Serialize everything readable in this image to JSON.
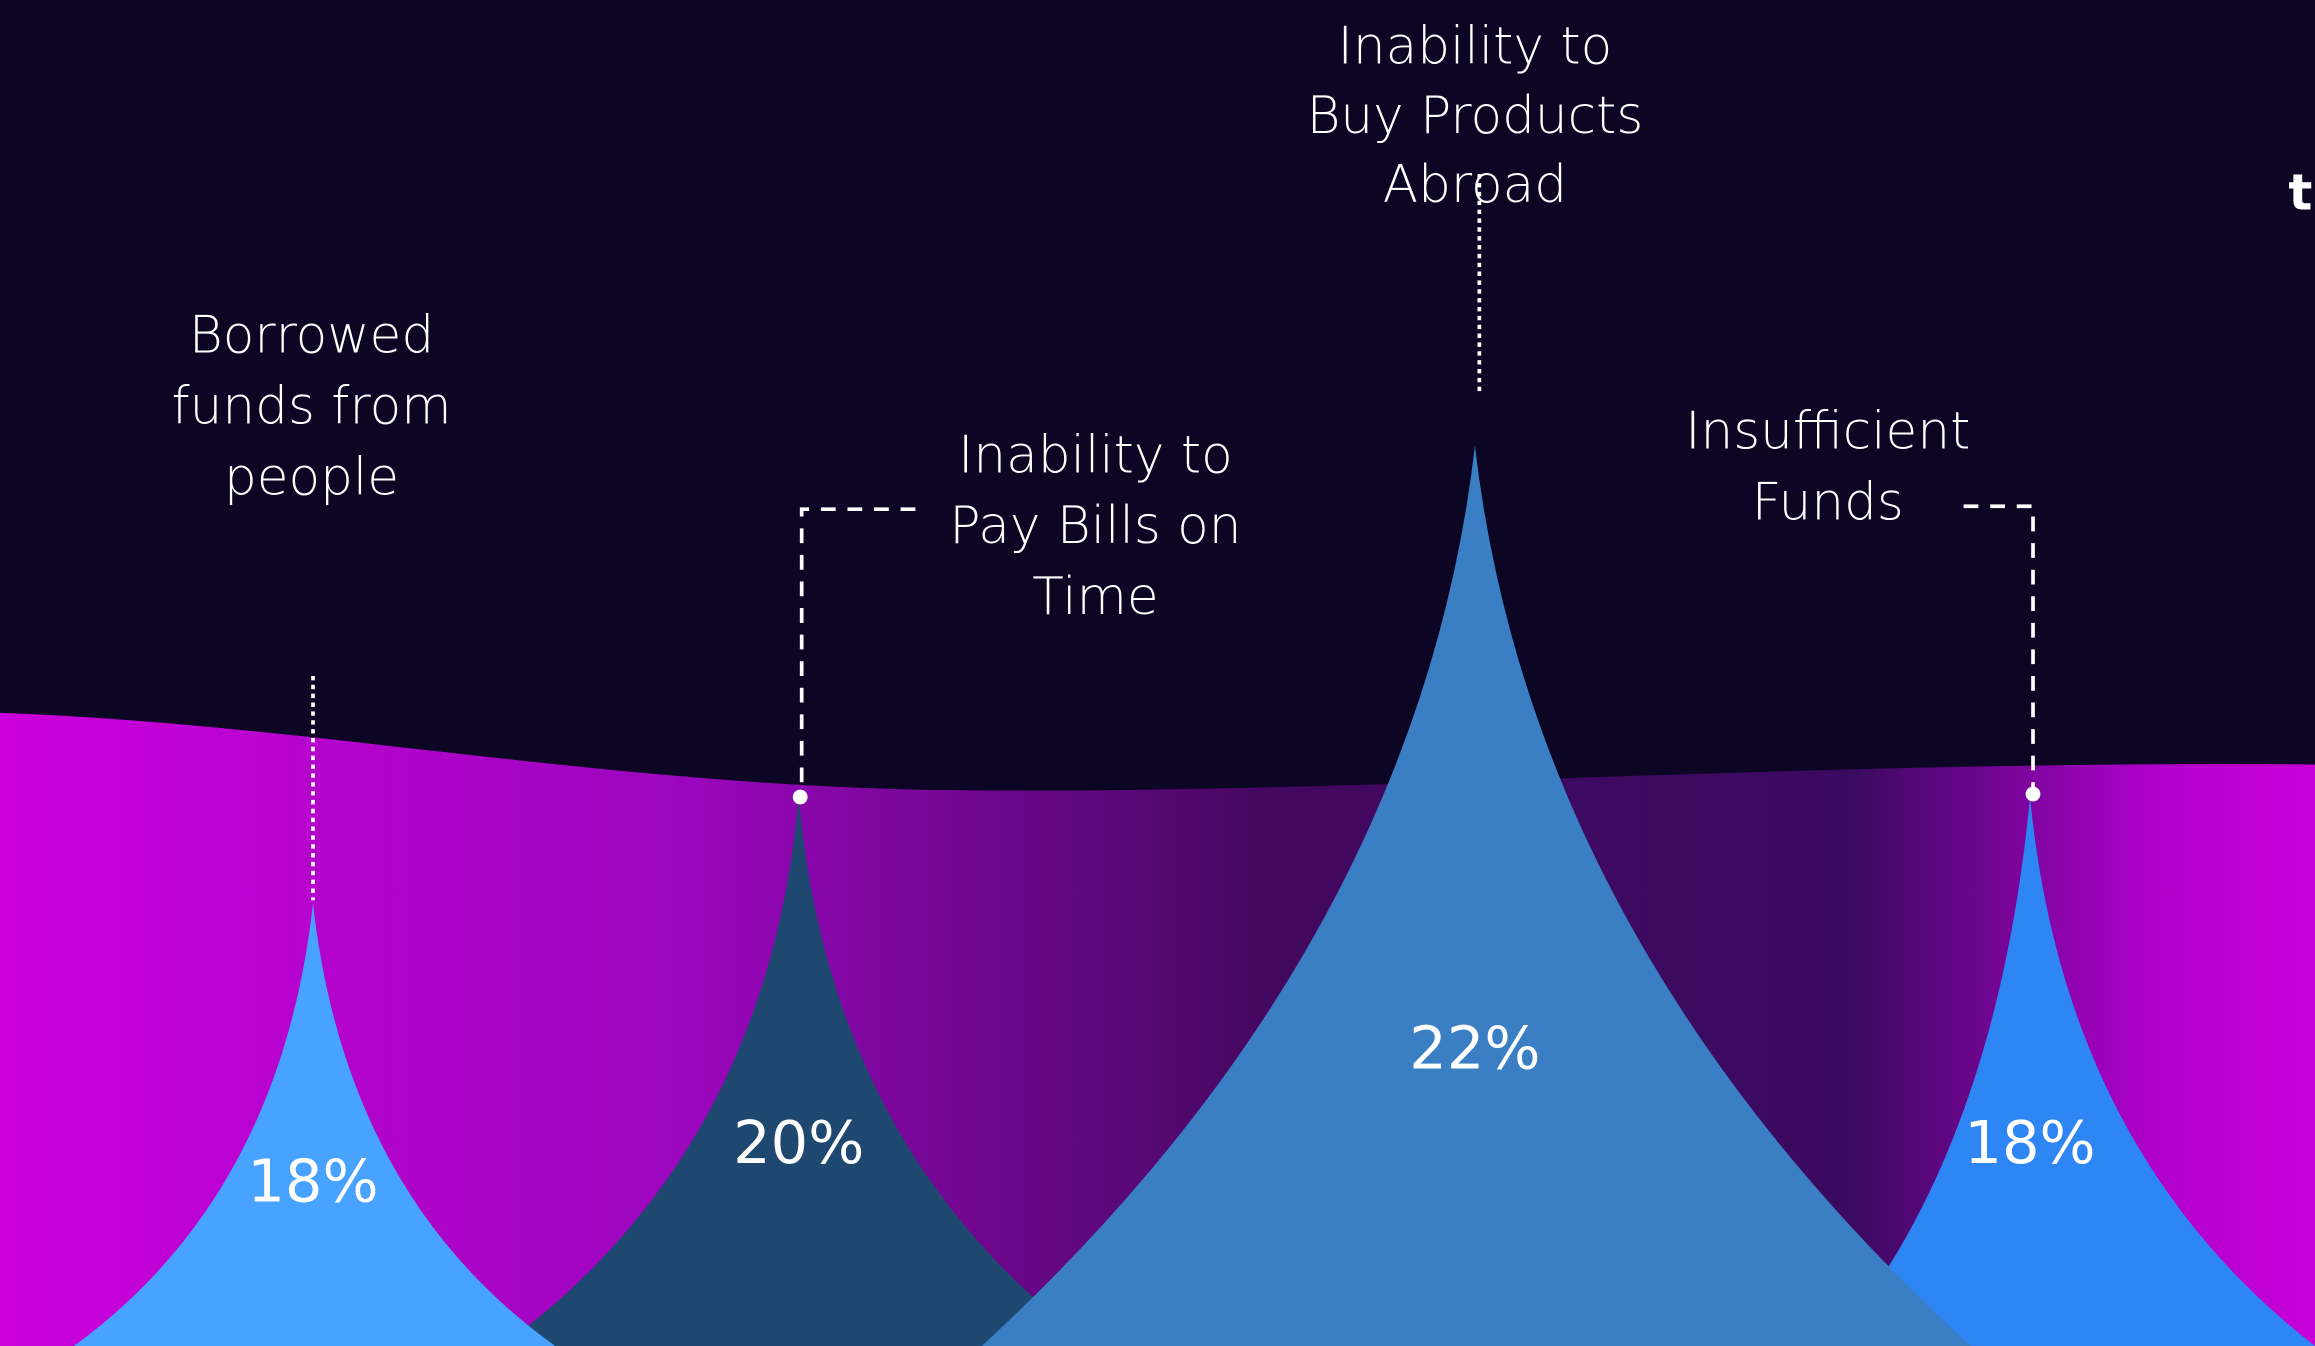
{
  "items": [
    {
      "label": [
        "Borrowed",
        "funds from",
        "people"
      ],
      "value": "18%"
    },
    {
      "label": [
        "Inability to",
        "Pay Bills on",
        "Time"
      ],
      "value": "20%"
    },
    {
      "label": [
        "Inability to",
        "Buy Products",
        "Abroad"
      ],
      "value": "22%"
    },
    {
      "label": [
        "Insufficient",
        "Funds"
      ],
      "value": "18%"
    }
  ],
  "edge_text": "t"
}
